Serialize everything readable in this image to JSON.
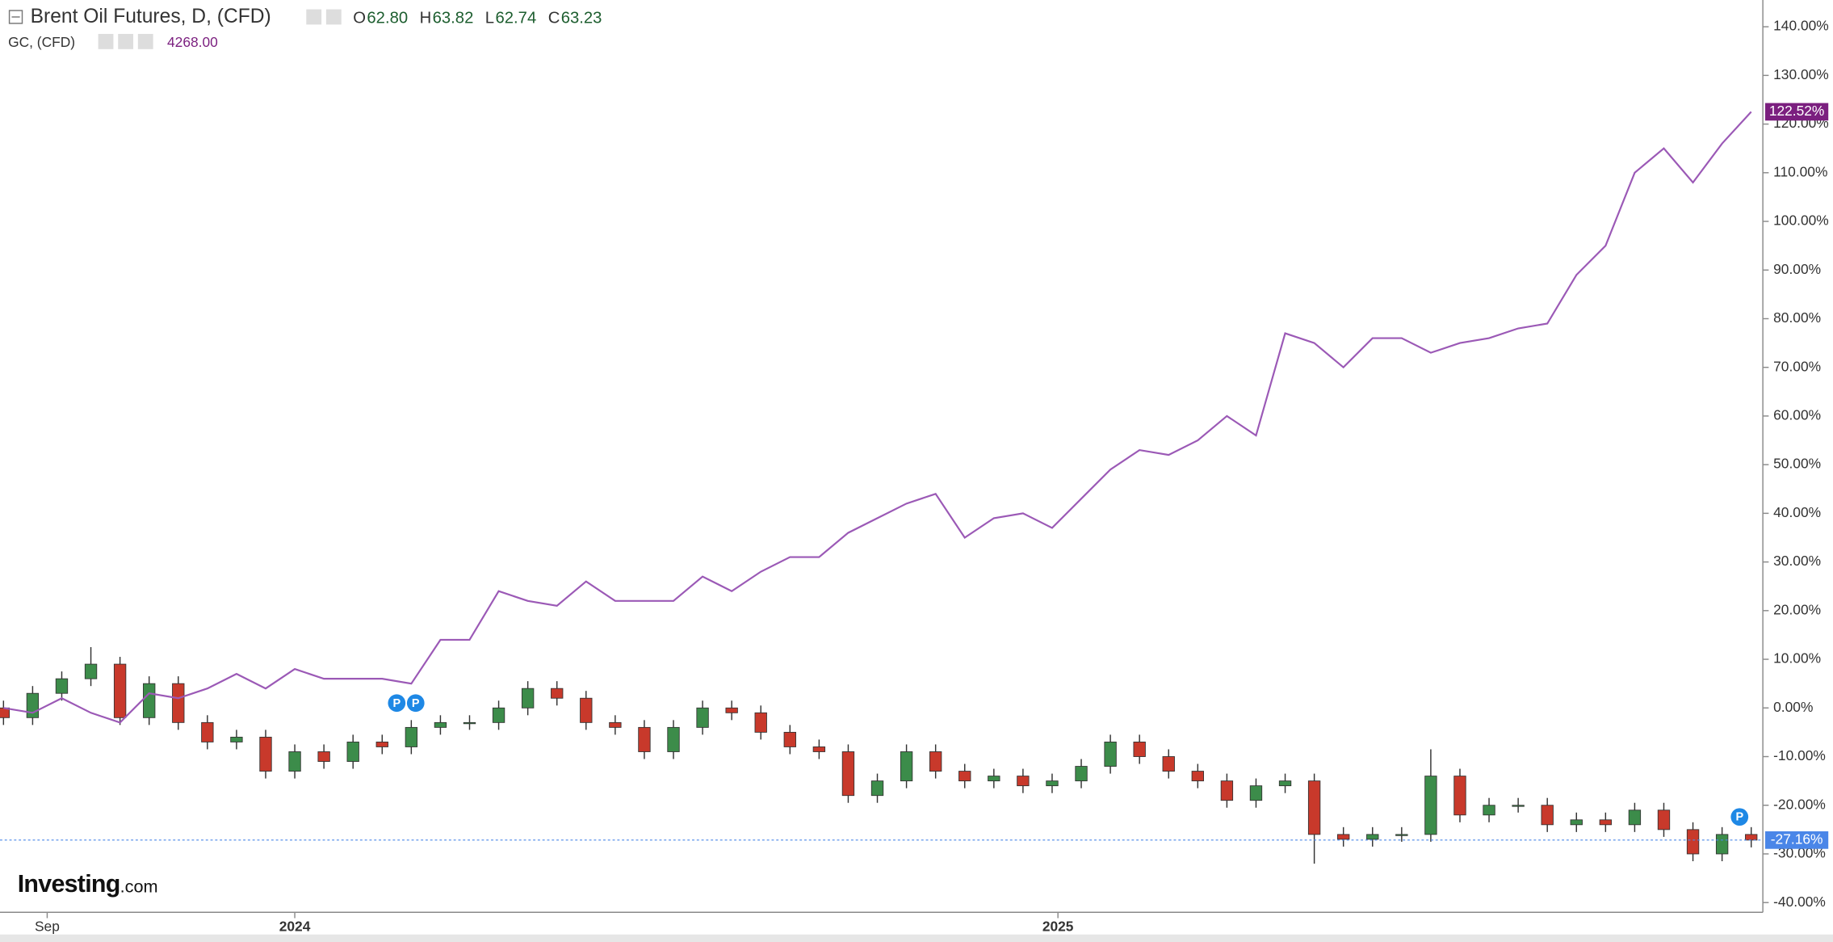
{
  "chart_data": {
    "type": "candlestick",
    "series": [
      {
        "name": "Brent Oil Futures, D, (CFD)",
        "type": "candlestick",
        "readout": [
          {
            "key": "O",
            "value": "62.80"
          },
          {
            "key": "H",
            "value": "63.82"
          },
          {
            "key": "L",
            "value": "62.74"
          },
          {
            "key": "C",
            "value": "63.23"
          }
        ],
        "up_color": "#3c8c4a",
        "down_color": "#c8392b",
        "label_color": "#4a86e8",
        "open": [
          0,
          -2,
          3,
          6,
          9,
          -2,
          5,
          -3,
          -7,
          -6,
          -13,
          -9,
          -11,
          -7,
          -8,
          -4,
          -3,
          -3,
          0,
          4,
          2,
          -3,
          -4,
          -9,
          -4,
          0,
          -1,
          -5,
          -8,
          -9,
          -18,
          -15,
          -9,
          -13,
          -15,
          -14,
          -16,
          -15,
          -12,
          -7,
          -10,
          -13,
          -15,
          -19,
          -16,
          -15,
          -26,
          -27,
          -26,
          -26,
          -14,
          -22,
          -20,
          -20,
          -24,
          -23,
          -24,
          -21,
          -25,
          -30,
          -26
        ],
        "high": [
          1.5,
          4.5,
          7.5,
          12.5,
          10.5,
          6.5,
          6.5,
          -1.5,
          -4.5,
          -4.5,
          -7.5,
          -7.5,
          -5.5,
          -5.5,
          -2.5,
          -1.5,
          -1.5,
          1.5,
          5.5,
          5.5,
          3.5,
          -1.5,
          -2.5,
          -2.5,
          1.5,
          1.5,
          0.5,
          -3.5,
          -6.5,
          -7.5,
          -13.5,
          -7.5,
          -7.5,
          -11.5,
          -12.5,
          -12.5,
          -13.5,
          -10.5,
          -5.5,
          -5.5,
          -8.5,
          -11.5,
          -13.5,
          -14.5,
          -13.5,
          -13.5,
          -24.5,
          -24.5,
          -24.5,
          -8.5,
          -12.5,
          -18.5,
          -18.5,
          -18.5,
          -21.5,
          -21.5,
          -19.5,
          -19.5,
          -23.5,
          -24.5,
          -24.5
        ],
        "low": [
          -3.5,
          -3.5,
          1.5,
          4.5,
          -3.5,
          -3.5,
          -4.5,
          -8.5,
          -8.5,
          -14.5,
          -14.5,
          -12.5,
          -12.5,
          -9.5,
          -9.5,
          -5.5,
          -4.5,
          -4.5,
          -1.5,
          0.5,
          -4.5,
          -5.5,
          -10.5,
          -10.5,
          -5.5,
          -2.5,
          -6.5,
          -9.5,
          -10.5,
          -19.5,
          -19.5,
          -16.5,
          -14.5,
          -16.5,
          -16.5,
          -17.5,
          -17.5,
          -16.5,
          -13.5,
          -11.5,
          -14.5,
          -16.5,
          -20.5,
          -20.5,
          -17.5,
          -32,
          -28.5,
          -28.5,
          -27.5,
          -27.5,
          -23.5,
          -23.5,
          -21.5,
          -25.5,
          -25.5,
          -25.5,
          -25.5,
          -26.5,
          -31.5,
          -31.5,
          -28.66
        ],
        "close": [
          -2,
          3,
          6,
          9,
          -2,
          5,
          -3,
          -7,
          -6,
          -13,
          -9,
          -11,
          -7,
          -8,
          -4,
          -3,
          -3,
          0,
          4,
          2,
          -3,
          -4,
          -9,
          -4,
          0,
          -1,
          -5,
          -8,
          -9,
          -18,
          -15,
          -9,
          -13,
          -15,
          -14,
          -16,
          -15,
          -12,
          -7,
          -10,
          -13,
          -15,
          -19,
          -16,
          -15,
          -26,
          -27,
          -26,
          -26,
          -14,
          -22,
          -20,
          -20,
          -24,
          -23,
          -24,
          -21,
          -25,
          -30,
          -26,
          -27.16
        ],
        "last_label": "-27.16%"
      },
      {
        "name": "GC, (CFD)",
        "type": "line",
        "color": "#9b59b6",
        "label_color": "#7b1f7f",
        "readout": "4268.00",
        "values": [
          0,
          -1,
          2,
          -1,
          -3,
          3,
          2,
          4,
          7,
          4,
          8,
          6,
          6,
          6,
          5,
          14,
          14,
          24,
          22,
          21,
          26,
          22,
          22,
          22,
          27,
          24,
          28,
          31,
          31,
          36,
          39,
          42,
          44,
          35,
          39,
          40,
          37,
          43,
          49,
          53,
          52,
          55,
          60,
          56,
          77,
          75,
          70,
          76,
          76,
          73,
          75,
          76,
          78,
          79,
          89,
          95,
          110,
          115,
          108,
          116,
          122.52
        ],
        "last_label": "122.52%"
      }
    ],
    "xlim": [
      -0.12,
      60.4
    ],
    "xticks": [
      {
        "value": 1.5,
        "label": "Sep"
      },
      {
        "value": 10,
        "label": "2024"
      },
      {
        "value": 36.2,
        "label": "2025"
      }
    ],
    "ylim": [
      -42,
      145.5
    ],
    "yticks": [
      {
        "value": -40,
        "label": "-40.00%"
      },
      {
        "value": -30,
        "label": "-30.00%"
      },
      {
        "value": -20,
        "label": "-20.00%"
      },
      {
        "value": -10,
        "label": "-10.00%"
      },
      {
        "value": 0,
        "label": "0.00%"
      },
      {
        "value": 10,
        "label": "10.00%"
      },
      {
        "value": 20,
        "label": "20.00%"
      },
      {
        "value": 30,
        "label": "30.00%"
      },
      {
        "value": 40,
        "label": "40.00%"
      },
      {
        "value": 50,
        "label": "50.00%"
      },
      {
        "value": 60,
        "label": "60.00%"
      },
      {
        "value": 70,
        "label": "70.00%"
      },
      {
        "value": 80,
        "label": "80.00%"
      },
      {
        "value": 90,
        "label": "90.00%"
      },
      {
        "value": 100,
        "label": "100.00%"
      },
      {
        "value": 110,
        "label": "110.00%"
      },
      {
        "value": 120,
        "label": "120.00%"
      },
      {
        "value": 130,
        "label": "130.00%"
      },
      {
        "value": 140,
        "label": "140.00%"
      }
    ],
    "events": [
      {
        "label": "P",
        "x": 13.5,
        "y": 1
      },
      {
        "label": "P",
        "x": 14.15,
        "y": 1
      },
      {
        "label": "P",
        "x": 59.6,
        "y": -22.4
      }
    ],
    "logo": {
      "brand": "Investing",
      "suffix": ".com"
    }
  }
}
